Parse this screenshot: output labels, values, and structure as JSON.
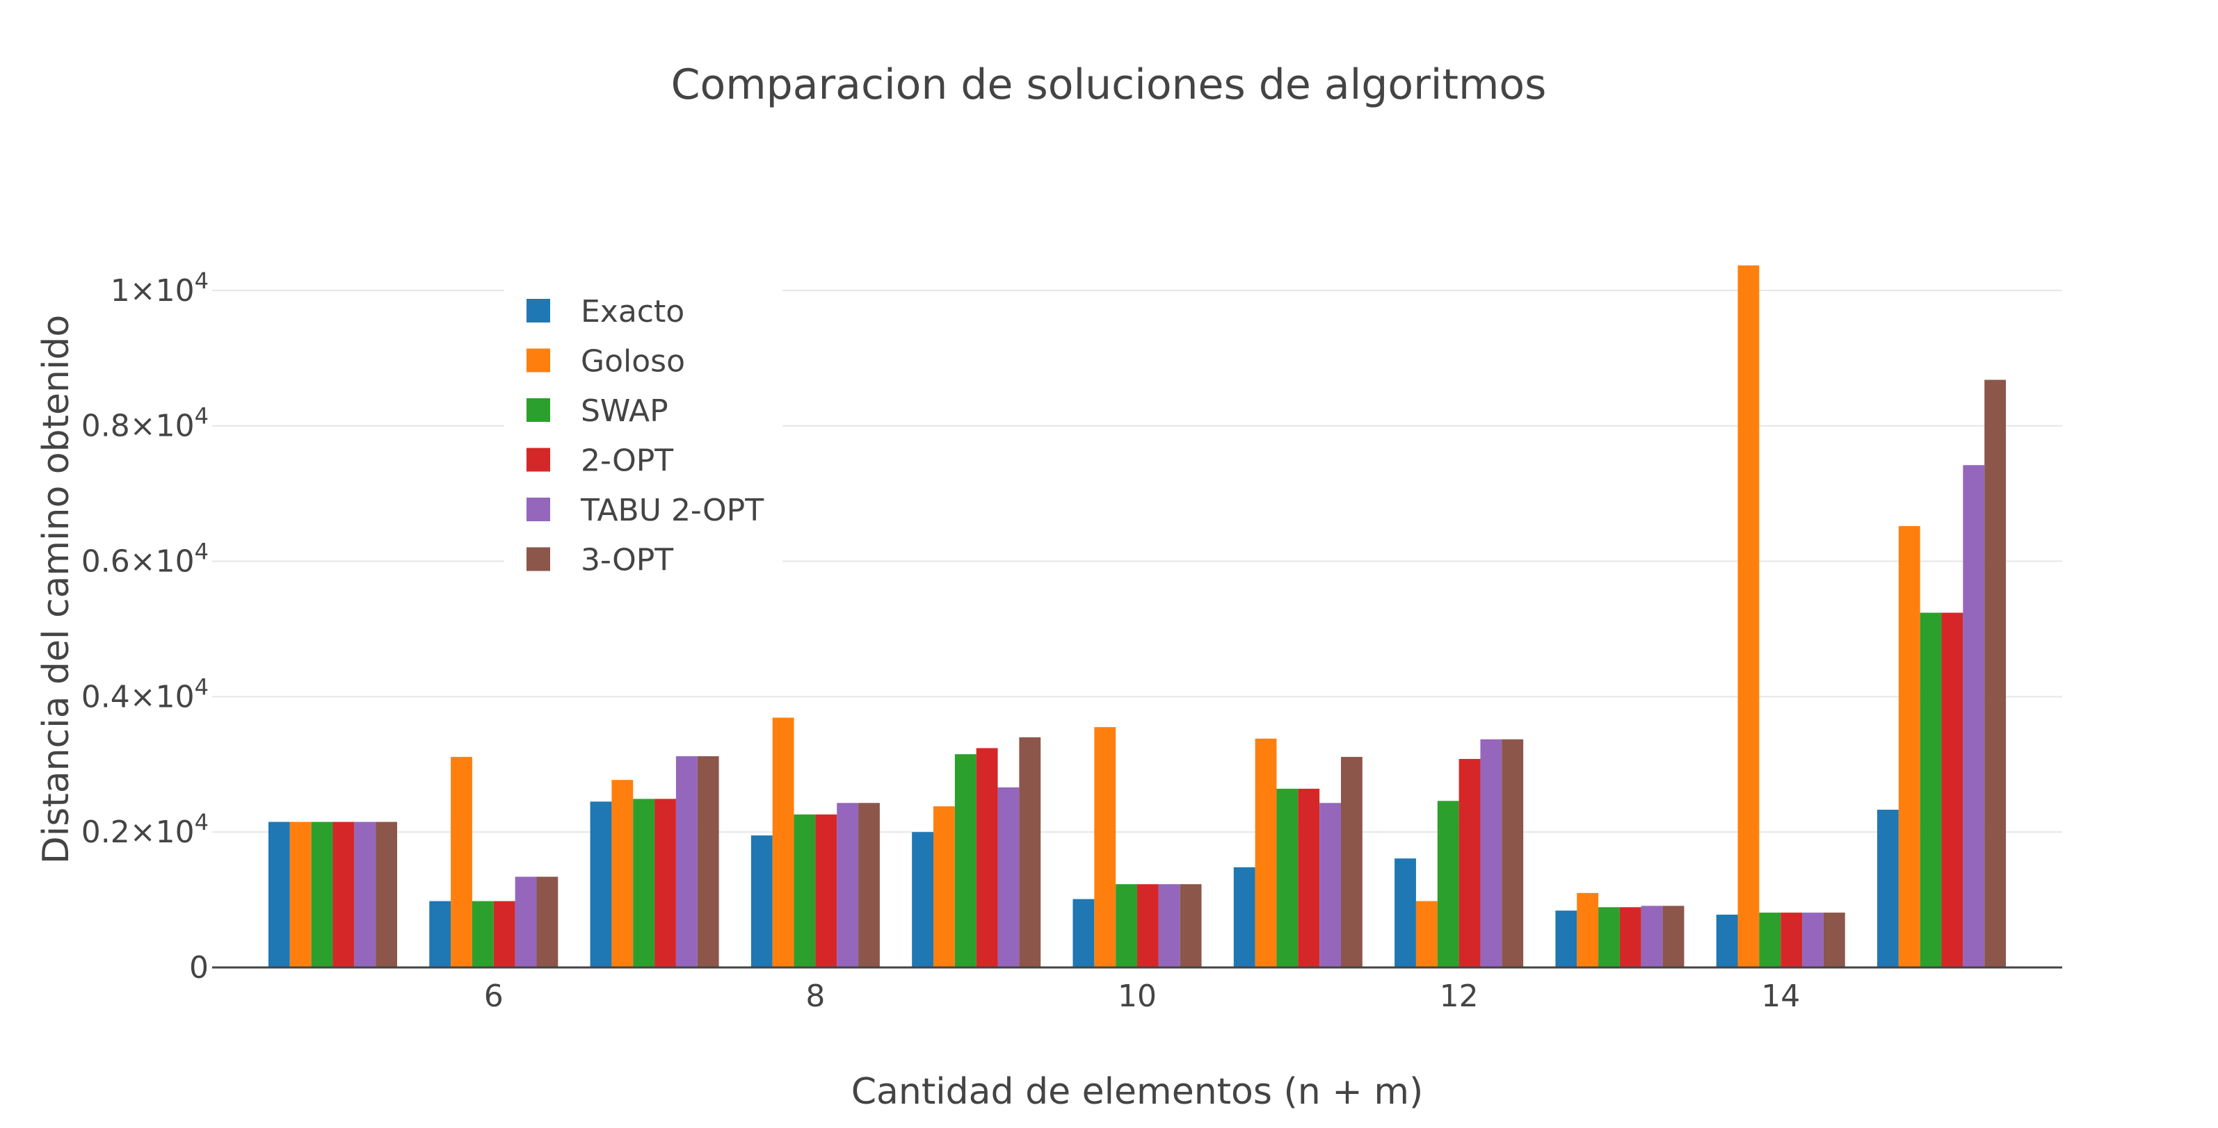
{
  "chart_data": {
    "type": "bar",
    "title": "Comparacion de soluciones de algoritmos",
    "xlabel": "Cantidad de elementos (n + m)",
    "ylabel": "Distancia del camino obtenido",
    "x": [
      5,
      6,
      7,
      8,
      9,
      10,
      11,
      12,
      13,
      14,
      15
    ],
    "xlim": [
      4.25,
      15.75
    ],
    "ylim": [
      0,
      10800
    ],
    "x_ticks": [
      {
        "value": 6,
        "label": "6"
      },
      {
        "value": 8,
        "label": "8"
      },
      {
        "value": 10,
        "label": "10"
      },
      {
        "value": 12,
        "label": "12"
      },
      {
        "value": 14,
        "label": "14"
      }
    ],
    "y_ticks": [
      {
        "value": 0,
        "label": "0",
        "exp": ""
      },
      {
        "value": 2000,
        "label": "0.2×10",
        "exp": "4"
      },
      {
        "value": 4000,
        "label": "0.4×10",
        "exp": "4"
      },
      {
        "value": 6000,
        "label": "0.6×10",
        "exp": "4"
      },
      {
        "value": 8000,
        "label": "0.8×10",
        "exp": "4"
      },
      {
        "value": 10000,
        "label": "1×10",
        "exp": "4"
      }
    ],
    "grid": true,
    "legend_position": "top-left",
    "series": [
      {
        "name": "Exacto",
        "color": "#1f77b4",
        "values": [
          2150,
          980,
          2450,
          1950,
          2000,
          1010,
          1480,
          1610,
          840,
          780,
          2330
        ]
      },
      {
        "name": "Goloso",
        "color": "#ff7f0e",
        "values": [
          2150,
          3110,
          2770,
          3690,
          2380,
          3550,
          3380,
          980,
          1100,
          10370,
          6520
        ]
      },
      {
        "name": "SWAP",
        "color": "#2ca02c",
        "values": [
          2150,
          980,
          2490,
          2260,
          3150,
          1230,
          2640,
          2460,
          890,
          810,
          5240
        ]
      },
      {
        "name": "2-OPT",
        "color": "#d62728",
        "values": [
          2150,
          980,
          2490,
          2260,
          3240,
          1230,
          2640,
          3080,
          890,
          810,
          5240
        ]
      },
      {
        "name": "TABU 2-OPT",
        "color": "#9467bd",
        "values": [
          2150,
          1340,
          3120,
          2430,
          2660,
          1230,
          2430,
          3370,
          910,
          810,
          7420
        ]
      },
      {
        "name": "3-OPT",
        "color": "#8c564b",
        "values": [
          2150,
          1340,
          3120,
          2430,
          3400,
          1230,
          3110,
          3370,
          910,
          810,
          8680
        ]
      }
    ]
  }
}
